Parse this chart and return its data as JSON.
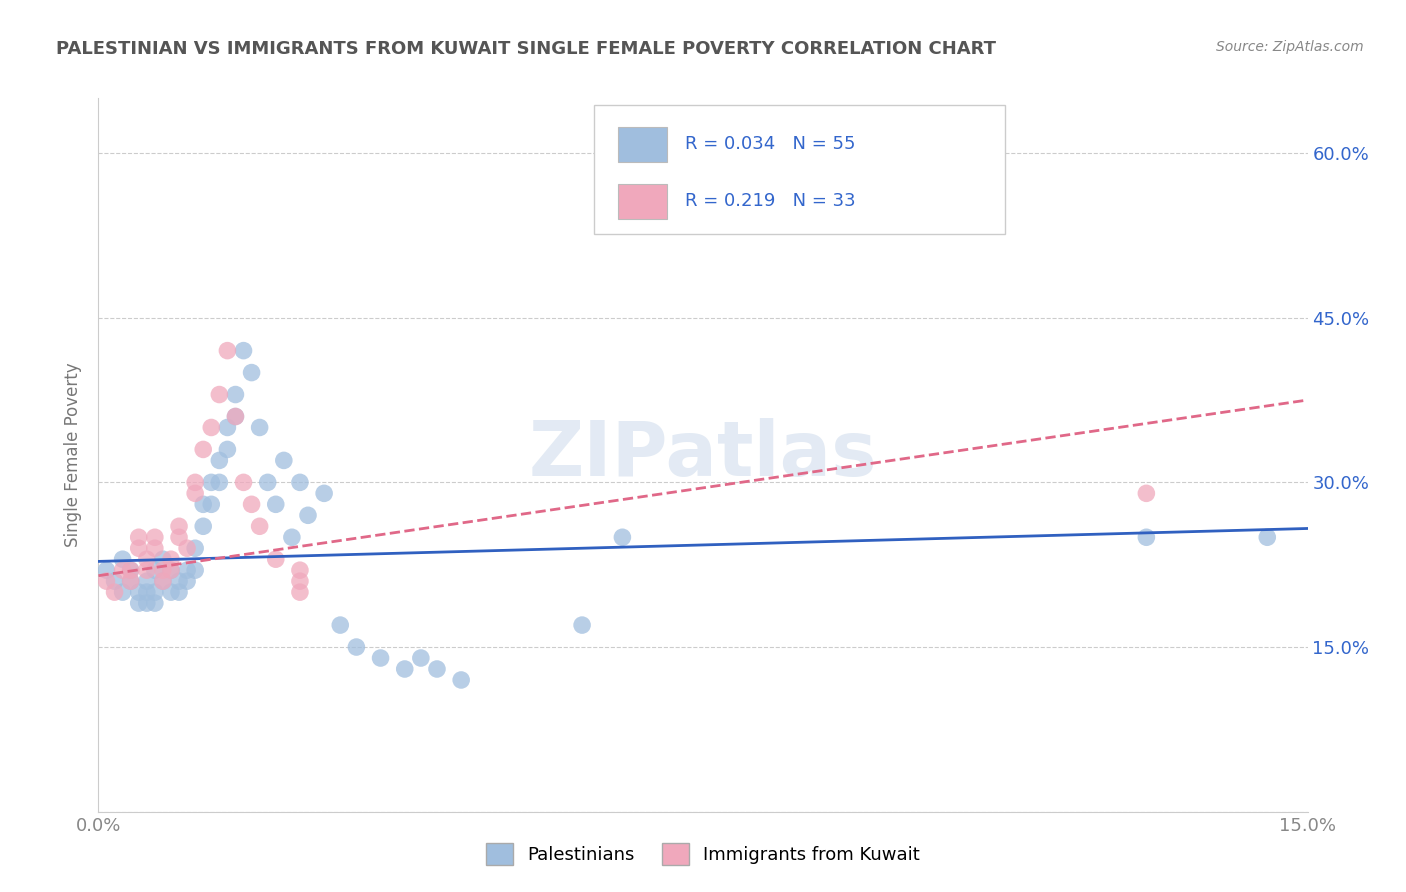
{
  "title": "PALESTINIAN VS IMMIGRANTS FROM KUWAIT SINGLE FEMALE POVERTY CORRELATION CHART",
  "source": "Source: ZipAtlas.com",
  "ylabel": "Single Female Poverty",
  "xlim": [
    0.0,
    0.15
  ],
  "ylim": [
    0.0,
    0.65
  ],
  "watermark": "ZIPatlas",
  "blue_R": "0.034",
  "blue_N": "55",
  "pink_R": "0.219",
  "pink_N": "33",
  "blue_scatter_x": [
    0.001,
    0.002,
    0.003,
    0.003,
    0.004,
    0.004,
    0.005,
    0.005,
    0.006,
    0.006,
    0.006,
    0.007,
    0.007,
    0.007,
    0.008,
    0.008,
    0.009,
    0.009,
    0.01,
    0.01,
    0.011,
    0.011,
    0.012,
    0.012,
    0.013,
    0.013,
    0.014,
    0.014,
    0.015,
    0.015,
    0.016,
    0.016,
    0.017,
    0.017,
    0.018,
    0.019,
    0.02,
    0.021,
    0.022,
    0.023,
    0.024,
    0.025,
    0.026,
    0.028,
    0.03,
    0.032,
    0.035,
    0.038,
    0.04,
    0.042,
    0.045,
    0.06,
    0.065,
    0.13,
    0.145
  ],
  "blue_scatter_y": [
    0.22,
    0.21,
    0.2,
    0.23,
    0.22,
    0.21,
    0.2,
    0.19,
    0.21,
    0.2,
    0.19,
    0.22,
    0.2,
    0.19,
    0.23,
    0.21,
    0.2,
    0.22,
    0.21,
    0.2,
    0.22,
    0.21,
    0.24,
    0.22,
    0.28,
    0.26,
    0.3,
    0.28,
    0.32,
    0.3,
    0.35,
    0.33,
    0.38,
    0.36,
    0.42,
    0.4,
    0.35,
    0.3,
    0.28,
    0.32,
    0.25,
    0.3,
    0.27,
    0.29,
    0.17,
    0.15,
    0.14,
    0.13,
    0.14,
    0.13,
    0.12,
    0.17,
    0.25,
    0.25,
    0.25
  ],
  "pink_scatter_x": [
    0.001,
    0.002,
    0.003,
    0.004,
    0.004,
    0.005,
    0.005,
    0.006,
    0.006,
    0.007,
    0.007,
    0.008,
    0.008,
    0.009,
    0.009,
    0.01,
    0.01,
    0.011,
    0.012,
    0.012,
    0.013,
    0.014,
    0.015,
    0.016,
    0.017,
    0.018,
    0.019,
    0.02,
    0.022,
    0.025,
    0.025,
    0.025,
    0.13
  ],
  "pink_scatter_y": [
    0.21,
    0.2,
    0.22,
    0.22,
    0.21,
    0.25,
    0.24,
    0.23,
    0.22,
    0.25,
    0.24,
    0.22,
    0.21,
    0.23,
    0.22,
    0.26,
    0.25,
    0.24,
    0.3,
    0.29,
    0.33,
    0.35,
    0.38,
    0.42,
    0.36,
    0.3,
    0.28,
    0.26,
    0.23,
    0.22,
    0.21,
    0.2,
    0.29
  ],
  "blue_color": "#a0bede",
  "pink_color": "#f0a8bc",
  "blue_line_color": "#3060c0",
  "pink_line_color": "#e06888",
  "background_color": "#ffffff",
  "grid_color": "#cccccc",
  "title_color": "#555555",
  "legend_text_color": "#3366cc",
  "right_tick_color": "#3366cc",
  "tick_color": "#888888"
}
